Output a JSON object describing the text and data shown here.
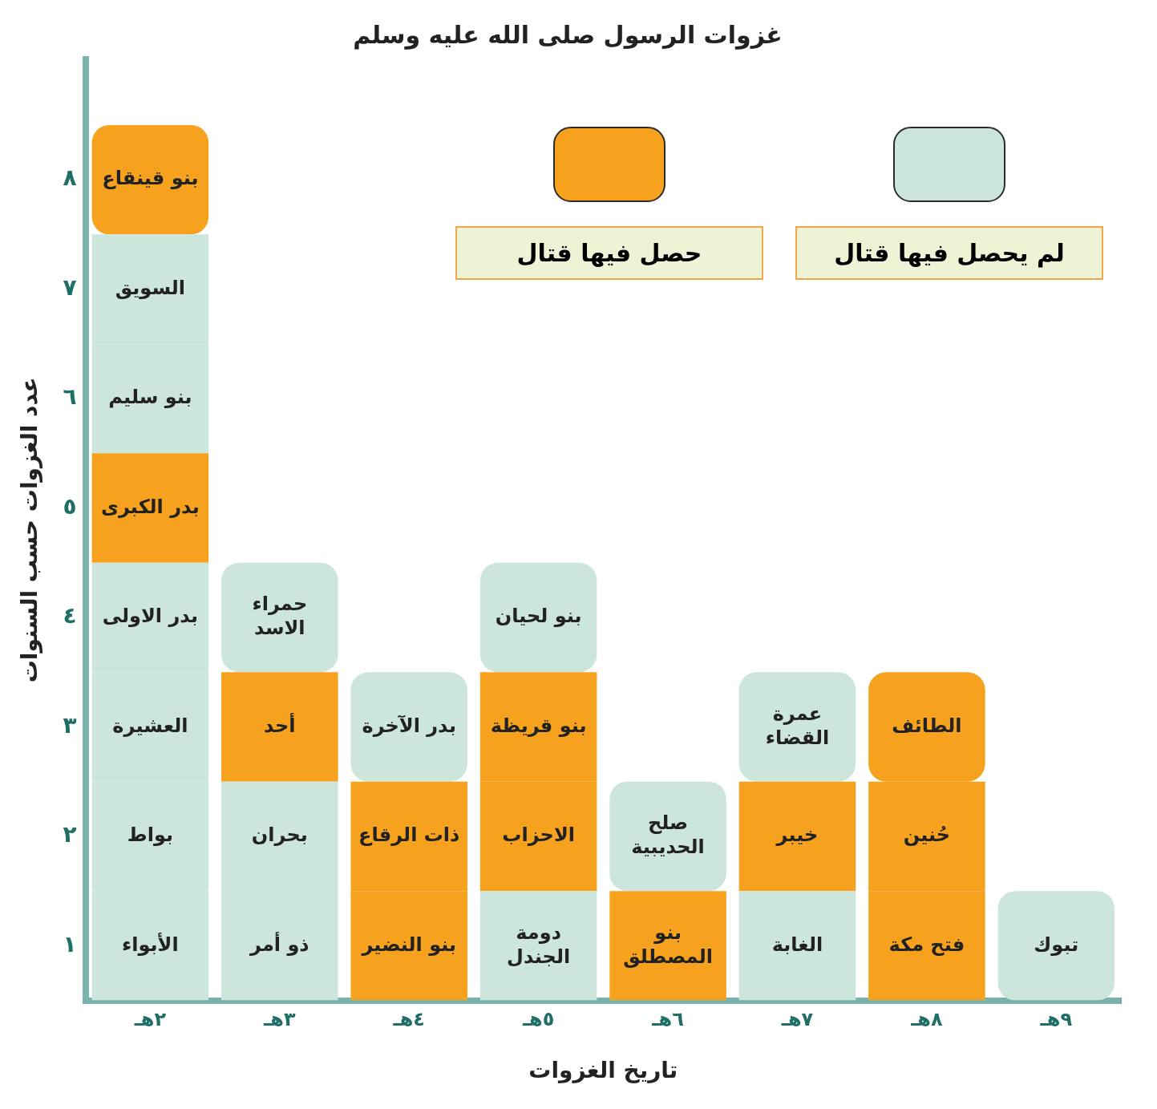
{
  "chart_data": {
    "type": "bar",
    "stacked": true,
    "title": "غزوات الرسول صلى الله عليه وسلم",
    "xlabel": "تاريخ الغزوات",
    "ylabel": "عدد الغزوات حسب السنوات",
    "categories": [
      "٢هـ",
      "٣هـ",
      "٤هـ",
      "٥هـ",
      "٦هـ",
      "٧هـ",
      "٨هـ",
      "٩هـ"
    ],
    "ylim": [
      0,
      8.6
    ],
    "yticks": [
      {
        "value": 0.5,
        "label": "١"
      },
      {
        "value": 1.5,
        "label": "٢"
      },
      {
        "value": 2.5,
        "label": "٣"
      },
      {
        "value": 3.5,
        "label": "٤"
      },
      {
        "value": 4.5,
        "label": "٥"
      },
      {
        "value": 5.5,
        "label": "٦"
      },
      {
        "value": 6.5,
        "label": "٧"
      },
      {
        "value": 7.5,
        "label": "٨"
      }
    ],
    "grid": false,
    "annotations": [
      "حصل فيها قتال",
      "لم يحصل فيها قتال"
    ],
    "series": [
      {
        "values": [
          1,
          1,
          1,
          1,
          1,
          1,
          1,
          1
        ],
        "colors": [
          "#cde6dc",
          "#cde6dc",
          "#f7a21e",
          "#cde6dc",
          "#f7a21e",
          "#cde6dc",
          "#f7a21e",
          "#cde6dc"
        ],
        "value_labels": [
          "الأبواء",
          "ذو أمر",
          "بنو النضير",
          "دومة الجندل",
          "بنو المصطلق",
          "الغابة",
          "فتح مكة",
          "تبوك"
        ]
      },
      {
        "values": [
          1,
          1,
          1,
          1,
          1,
          1,
          1,
          null
        ],
        "colors": [
          "#cde6dc",
          "#cde6dc",
          "#f7a21e",
          "#f7a21e",
          "#cde6dc",
          "#f7a21e",
          "#f7a21e",
          null
        ],
        "value_labels": [
          "بواط",
          "بحران",
          "ذات الرقاع",
          "الاحزاب",
          "صلح الحديبية",
          "خيبر",
          "حُنين",
          null
        ]
      },
      {
        "values": [
          1,
          1,
          1,
          1,
          null,
          1,
          1,
          null
        ],
        "colors": [
          "#cde6dc",
          "#f7a21e",
          "#cde6dc",
          "#f7a21e",
          null,
          "#cde6dc",
          "#f7a21e",
          null
        ],
        "value_labels": [
          "العشيرة",
          "أحد",
          "بدر الآخرة",
          "بنو قريظة",
          null,
          "عمرة القضاء",
          "الطائف",
          null
        ]
      },
      {
        "values": [
          1,
          1,
          null,
          1,
          null,
          null,
          null,
          null
        ],
        "colors": [
          "#cde6dc",
          "#cde6dc",
          null,
          "#cde6dc",
          null,
          null,
          null,
          null
        ],
        "value_labels": [
          "بدر الاولى",
          "حمراء الاسد",
          null,
          "بنو لحيان",
          null,
          null,
          null,
          null
        ]
      },
      {
        "values": [
          1,
          null,
          null,
          null,
          null,
          null,
          null,
          null
        ],
        "colors": [
          "#f7a21e",
          null,
          null,
          null,
          null,
          null,
          null,
          null
        ],
        "value_labels": [
          "بدر الكبرى",
          null,
          null,
          null,
          null,
          null,
          null,
          null
        ]
      },
      {
        "values": [
          1,
          null,
          null,
          null,
          null,
          null,
          null,
          null
        ],
        "colors": [
          "#cde6dc",
          null,
          null,
          null,
          null,
          null,
          null,
          null
        ],
        "value_labels": [
          "بنو سليم",
          null,
          null,
          null,
          null,
          null,
          null,
          null
        ]
      },
      {
        "values": [
          1,
          null,
          null,
          null,
          null,
          null,
          null,
          null
        ],
        "colors": [
          "#cde6dc",
          null,
          null,
          null,
          null,
          null,
          null,
          null
        ],
        "value_labels": [
          "السويق",
          null,
          null,
          null,
          null,
          null,
          null,
          null
        ]
      },
      {
        "values": [
          1,
          null,
          null,
          null,
          null,
          null,
          null,
          null
        ],
        "colors": [
          "#f7a21e",
          null,
          null,
          null,
          null,
          null,
          null,
          null
        ],
        "value_labels": [
          "بنو قينقاع",
          null,
          null,
          null,
          null,
          null,
          null,
          null
        ]
      }
    ]
  }
}
